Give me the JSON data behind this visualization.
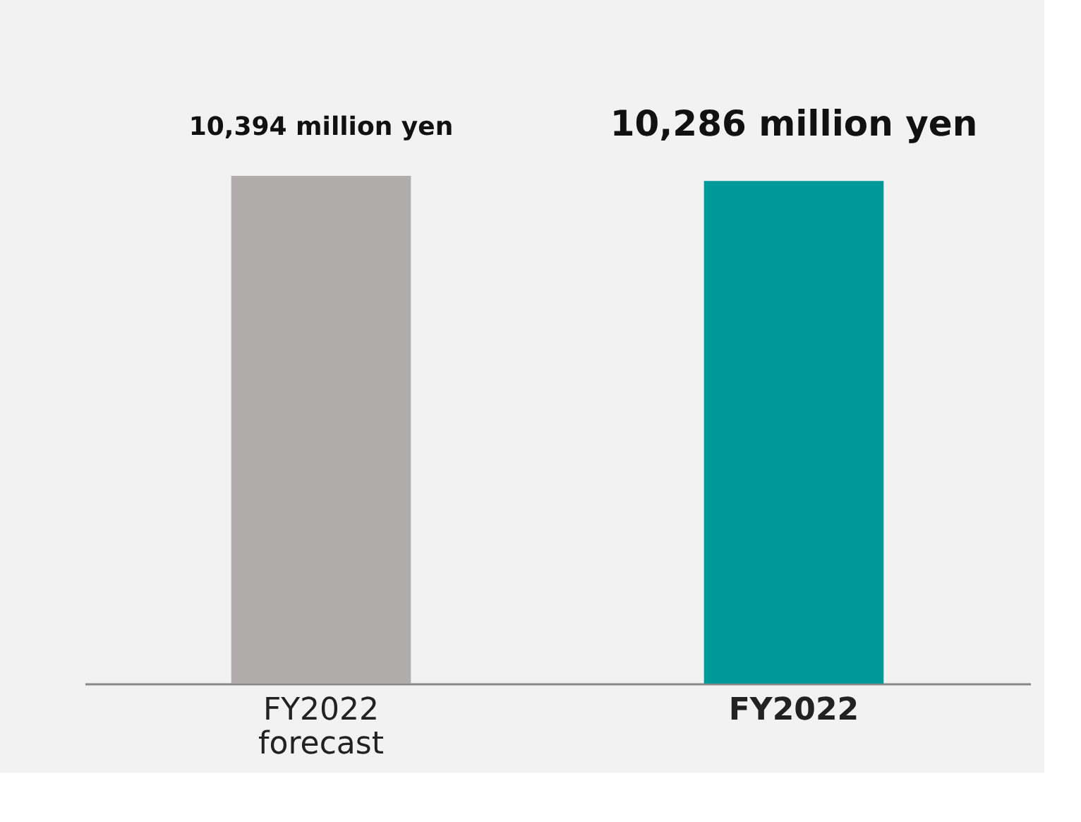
{
  "chart_data": {
    "type": "bar",
    "categories": [
      "FY2022 forecast",
      "FY2022"
    ],
    "values": [
      10394,
      10286
    ],
    "colors": [
      "#b0acab",
      "#009999"
    ],
    "value_labels": [
      "10,394 million yen",
      "10,286 million yen"
    ]
  }
}
